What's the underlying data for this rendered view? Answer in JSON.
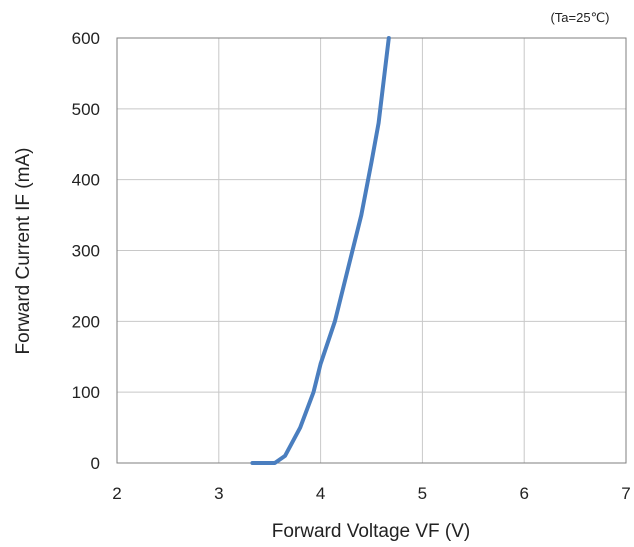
{
  "chart_data": {
    "type": "line",
    "title": "",
    "annotation": "(Ta=25℃)",
    "xlabel": "Forward Voltage VF (V)",
    "ylabel": "Forward Current IF (mA)",
    "xlim": [
      2,
      7
    ],
    "ylim": [
      0,
      600
    ],
    "x_ticks": [
      2,
      3,
      4,
      5,
      6,
      7
    ],
    "y_ticks": [
      0,
      100,
      200,
      300,
      400,
      500,
      600
    ],
    "grid": true,
    "line_color": "#4a7ebf",
    "series": [
      {
        "points": [
          [
            3.33,
            0
          ],
          [
            3.55,
            0
          ],
          [
            3.65,
            10
          ],
          [
            3.8,
            50
          ],
          [
            3.93,
            100
          ],
          [
            4.0,
            140
          ],
          [
            4.14,
            200
          ],
          [
            4.27,
            275
          ],
          [
            4.4,
            350
          ],
          [
            4.5,
            425
          ],
          [
            4.57,
            480
          ],
          [
            4.67,
            600
          ]
        ]
      }
    ]
  }
}
